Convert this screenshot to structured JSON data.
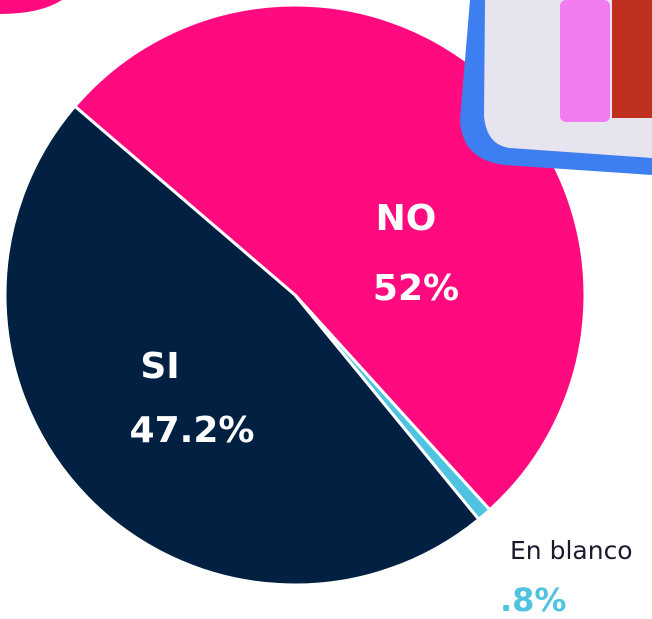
{
  "chart_data": {
    "type": "pie",
    "categories": [
      "NO",
      "En blanco",
      "SI"
    ],
    "values": [
      52,
      0.8,
      47.2
    ],
    "value_labels": [
      "52%",
      ".8%",
      "47.2%"
    ],
    "colors": [
      "#ff0a7f",
      "#4fc3e0",
      "#012042"
    ]
  }
}
